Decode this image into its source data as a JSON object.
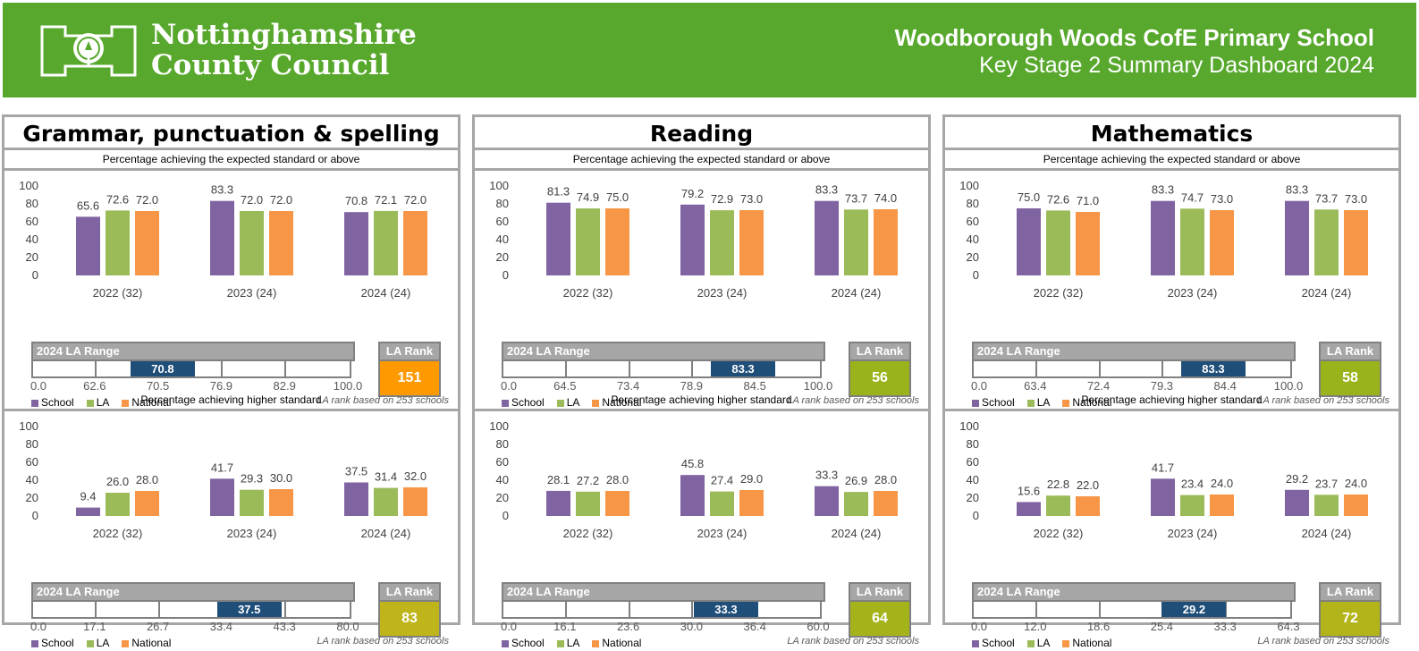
{
  "header": {
    "org_line1": "Nottinghamshire",
    "org_line2": "County Council",
    "school_name": "Woodborough Woods CofE Primary School",
    "dashboard_title": "Key Stage 2 Summary Dashboard 2024"
  },
  "colors": {
    "header_green": "#57a82c",
    "school": "#8064a2",
    "la": "#9bbb59",
    "national": "#f79646",
    "range_marker": "#1f4e79"
  },
  "labels": {
    "expected": "Percentage achieving the expected standard or above",
    "higher": "Percentage achieving higher standard",
    "range_title": "2024 LA Range",
    "rank_title": "LA Rank",
    "rank_note": "LA rank based on 253 schools",
    "legend": [
      "School",
      "LA",
      "National"
    ]
  },
  "panels": [
    {
      "subject": "Grammar, punctuation & spelling",
      "expected": {
        "range_ticks": [
          "0.0",
          "62.6",
          "70.5",
          "76.9",
          "82.9",
          "100.0"
        ],
        "school_value": "70.8",
        "rank": "151",
        "rank_color": "#ff9900"
      },
      "higher": {
        "range_ticks": [
          "0.0",
          "17.1",
          "26.7",
          "33.4",
          "43.3",
          "80.0"
        ],
        "school_value": "37.5",
        "rank": "83",
        "rank_color": "#bfb419"
      }
    },
    {
      "subject": "Reading",
      "expected": {
        "range_ticks": [
          "0.0",
          "64.5",
          "73.4",
          "78.9",
          "84.5",
          "100.0"
        ],
        "school_value": "83.3",
        "rank": "56",
        "rank_color": "#99b31a"
      },
      "higher": {
        "range_ticks": [
          "0.0",
          "16.1",
          "23.6",
          "30.0",
          "36.4",
          "60.0"
        ],
        "school_value": "33.3",
        "rank": "64",
        "rank_color": "#a5b31a"
      }
    },
    {
      "subject": "Mathematics",
      "expected": {
        "range_ticks": [
          "0.0",
          "63.4",
          "72.4",
          "79.3",
          "84.4",
          "100.0"
        ],
        "school_value": "83.3",
        "rank": "58",
        "rank_color": "#99b31a"
      },
      "higher": {
        "range_ticks": [
          "0.0",
          "12.0",
          "18.6",
          "25.4",
          "33.3",
          "64.3"
        ],
        "school_value": "29.2",
        "rank": "72",
        "rank_color": "#b3b31a"
      }
    }
  ],
  "chart_data": [
    {
      "type": "bar",
      "title": "Grammar, punctuation & spelling — Percentage achieving the expected standard or above",
      "categories": [
        "2022 (32)",
        "2023 (24)",
        "2024 (24)"
      ],
      "ylim": [
        0,
        100
      ],
      "yticks": [
        0,
        20,
        40,
        60,
        80,
        100
      ],
      "series": [
        {
          "name": "School",
          "values": [
            65.6,
            83.3,
            70.8
          ]
        },
        {
          "name": "LA",
          "values": [
            72.6,
            72.0,
            72.1
          ]
        },
        {
          "name": "National",
          "values": [
            72.0,
            72.0,
            72.0
          ]
        }
      ]
    },
    {
      "type": "bar",
      "title": "Grammar, punctuation & spelling — Percentage achieving higher standard",
      "categories": [
        "2022 (32)",
        "2023 (24)",
        "2024 (24)"
      ],
      "ylim": [
        0,
        100
      ],
      "yticks": [
        0,
        20,
        40,
        60,
        80,
        100
      ],
      "series": [
        {
          "name": "School",
          "values": [
            9.4,
            41.7,
            37.5
          ]
        },
        {
          "name": "LA",
          "values": [
            26.0,
            29.3,
            31.4
          ]
        },
        {
          "name": "National",
          "values": [
            28.0,
            30.0,
            32.0
          ]
        }
      ]
    },
    {
      "type": "bar",
      "title": "Reading — Percentage achieving the expected standard or above",
      "categories": [
        "2022 (32)",
        "2023 (24)",
        "2024 (24)"
      ],
      "ylim": [
        0,
        100
      ],
      "yticks": [
        0,
        20,
        40,
        60,
        80,
        100
      ],
      "series": [
        {
          "name": "School",
          "values": [
            81.3,
            79.2,
            83.3
          ]
        },
        {
          "name": "LA",
          "values": [
            74.9,
            72.9,
            73.7
          ]
        },
        {
          "name": "National",
          "values": [
            75.0,
            73.0,
            74.0
          ]
        }
      ]
    },
    {
      "type": "bar",
      "title": "Reading — Percentage achieving higher standard",
      "categories": [
        "2022 (32)",
        "2023 (24)",
        "2024 (24)"
      ],
      "ylim": [
        0,
        100
      ],
      "yticks": [
        0,
        20,
        40,
        60,
        80,
        100
      ],
      "series": [
        {
          "name": "School",
          "values": [
            28.1,
            45.8,
            33.3
          ]
        },
        {
          "name": "LA",
          "values": [
            27.2,
            27.4,
            26.9
          ]
        },
        {
          "name": "National",
          "values": [
            28.0,
            29.0,
            28.0
          ]
        }
      ]
    },
    {
      "type": "bar",
      "title": "Mathematics — Percentage achieving the expected standard or above",
      "categories": [
        "2022 (32)",
        "2023 (24)",
        "2024 (24)"
      ],
      "ylim": [
        0,
        100
      ],
      "yticks": [
        0,
        20,
        40,
        60,
        80,
        100
      ],
      "series": [
        {
          "name": "School",
          "values": [
            75.0,
            83.3,
            83.3
          ]
        },
        {
          "name": "LA",
          "values": [
            72.6,
            74.7,
            73.7
          ]
        },
        {
          "name": "National",
          "values": [
            71.0,
            73.0,
            73.0
          ]
        }
      ]
    },
    {
      "type": "bar",
      "title": "Mathematics — Percentage achieving higher standard",
      "categories": [
        "2022 (32)",
        "2023 (24)",
        "2024 (24)"
      ],
      "ylim": [
        0,
        100
      ],
      "yticks": [
        0,
        20,
        40,
        60,
        80,
        100
      ],
      "series": [
        {
          "name": "School",
          "values": [
            15.6,
            41.7,
            29.2
          ]
        },
        {
          "name": "LA",
          "values": [
            22.8,
            23.4,
            23.7
          ]
        },
        {
          "name": "National",
          "values": [
            22.0,
            24.0,
            24.0
          ]
        }
      ]
    }
  ]
}
